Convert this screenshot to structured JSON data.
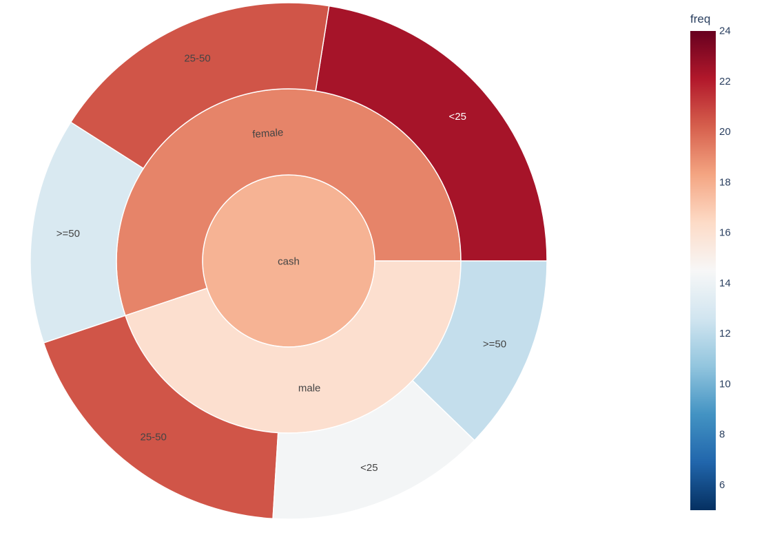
{
  "chart_data": {
    "type": "sunburst",
    "title": "",
    "colorbar": {
      "title": "freq",
      "range": [
        5,
        24
      ],
      "ticks": [
        6,
        8,
        10,
        12,
        14,
        16,
        18,
        20,
        22,
        24
      ],
      "colorscale": "RdBu reversed"
    },
    "root": {
      "label": "cash",
      "color_value": 17.8
    },
    "groups": [
      {
        "label": "female",
        "color_value": 19.2,
        "children": [
          {
            "label": "<25",
            "color_value": 22.4
          },
          {
            "label": "25-50",
            "color_value": 20.5
          },
          {
            "label": ">=50",
            "color_value": 13
          }
        ]
      },
      {
        "label": "male",
        "color_value": 16.1,
        "children": [
          {
            "label": "25-50",
            "color_value": 20.5
          },
          {
            "label": "<25",
            "color_value": 14.3
          },
          {
            "label": ">=50",
            "color_value": 12.2
          }
        ]
      }
    ]
  }
}
